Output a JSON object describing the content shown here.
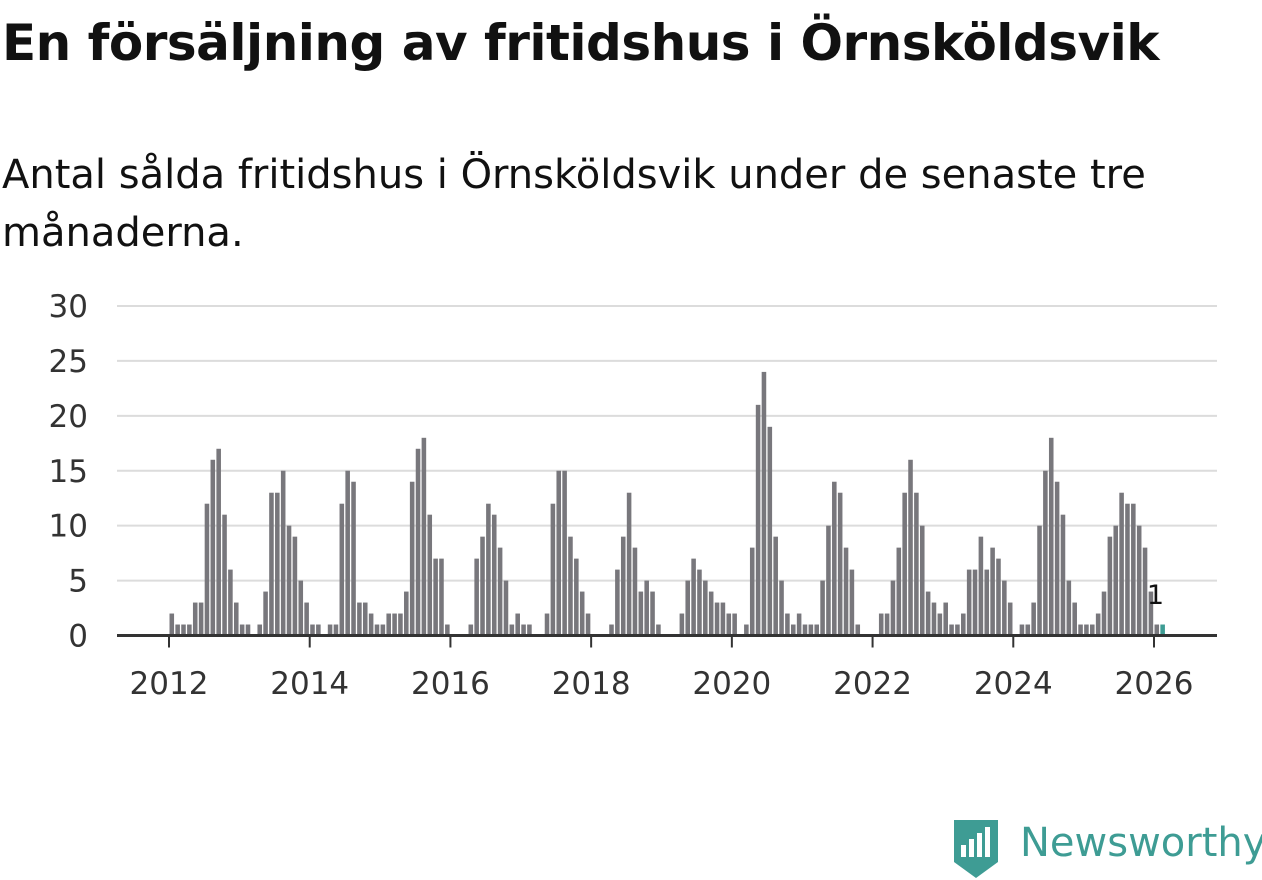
{
  "title": "En försäljning av fritidshus i Örnsköldsvik",
  "subtitle": "Antal sålda fritidshus i Örnsköldsvik under de senaste tre månaderna.",
  "brand": {
    "name": "Newsworthy",
    "color": "#3e9c94",
    "logo_icon": "bar-chart-badge-icon"
  },
  "chart_data": {
    "type": "bar",
    "title": "En försäljning av fritidshus i Örnsköldsvik",
    "subtitle": "Antal sålda fritidshus i Örnsköldsvik under de senaste tre månaderna.",
    "xlabel": "",
    "ylabel": "",
    "ylim": [
      0,
      30
    ],
    "yticks": [
      "0",
      "5",
      "10",
      "15",
      "20",
      "25",
      "30"
    ],
    "xticks": [
      "2012",
      "2014",
      "2016",
      "2018",
      "2020",
      "2022",
      "2024",
      "2026"
    ],
    "start": "2011-01",
    "grid": true,
    "series_color": "#78777c",
    "highlight_color": "#3e9c94",
    "annotation": {
      "text": "1",
      "target": "last"
    },
    "values": [
      0,
      0,
      0,
      0,
      0,
      0,
      0,
      0,
      0,
      0,
      0,
      0,
      2,
      1,
      1,
      1,
      3,
      3,
      12,
      16,
      17,
      11,
      6,
      3,
      1,
      1,
      0,
      1,
      4,
      13,
      13,
      15,
      10,
      9,
      5,
      3,
      1,
      1,
      0,
      1,
      1,
      12,
      15,
      14,
      3,
      3,
      2,
      1,
      1,
      2,
      2,
      2,
      4,
      14,
      17,
      18,
      11,
      7,
      7,
      1,
      0,
      0,
      0,
      1,
      7,
      9,
      12,
      11,
      8,
      5,
      1,
      2,
      1,
      1,
      0,
      0,
      2,
      12,
      15,
      15,
      9,
      7,
      4,
      2,
      0,
      0,
      0,
      1,
      6,
      9,
      13,
      8,
      4,
      5,
      4,
      1,
      0,
      0,
      0,
      2,
      5,
      7,
      6,
      5,
      4,
      3,
      3,
      2,
      2,
      0,
      1,
      8,
      21,
      24,
      19,
      9,
      5,
      2,
      1,
      2,
      1,
      1,
      1,
      5,
      10,
      14,
      13,
      8,
      6,
      1,
      0,
      0,
      0,
      2,
      2,
      5,
      8,
      13,
      16,
      13,
      10,
      4,
      3,
      2,
      3,
      1,
      1,
      2,
      6,
      6,
      9,
      6,
      8,
      7,
      5,
      3,
      0,
      1,
      1,
      3,
      10,
      15,
      18,
      14,
      11,
      5,
      3,
      1,
      1,
      1,
      2,
      4,
      9,
      10,
      13,
      12,
      12,
      10,
      8,
      4,
      1,
      1
    ]
  }
}
